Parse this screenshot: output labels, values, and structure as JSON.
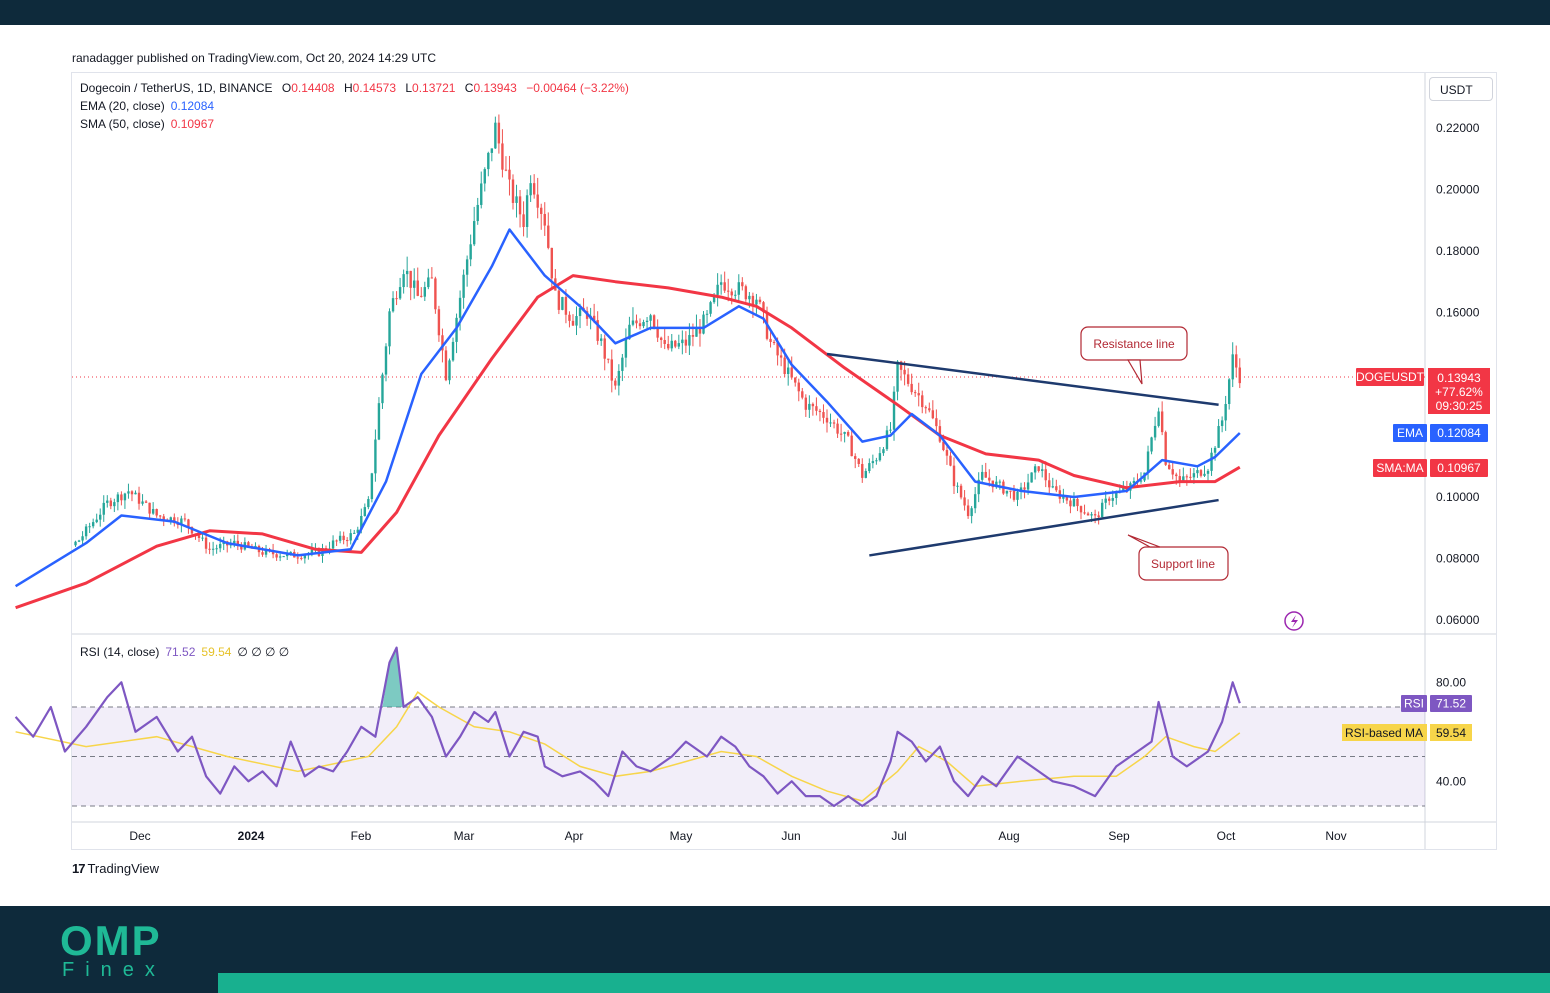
{
  "header": {
    "published": "ranadagger published on TradingView.com, Oct 20, 2024 14:29 UTC"
  },
  "legend": {
    "symbol": "Dogecoin / TetherUS, 1D, BINANCE",
    "o_key": "O",
    "o_val": "0.14408",
    "h_key": "H",
    "h_val": "0.14573",
    "l_key": "L",
    "l_val": "0.13721",
    "c_key": "C",
    "c_val": "0.13943",
    "change": "−0.00464 (−3.22%)",
    "ema_label": "EMA (20, close)",
    "ema_val": "0.12084",
    "sma_label": "SMA (50, close)",
    "sma_val": "0.10967",
    "rsi_label": "RSI (14, close)",
    "rsi_val": "71.52",
    "rsi_ma_val": "59.54",
    "rsi_extra": "∅ ∅ ∅ ∅"
  },
  "currency": "USDT",
  "badges": {
    "symbol": "DOGEUSDT",
    "price": "0.13943",
    "pct": "+77.62%",
    "countdown": "09:30:25",
    "ema_tag": "EMA",
    "ema_val": "0.12084",
    "sma_tag": "SMA:MA",
    "sma_val": "0.10967",
    "rsi_tag": "RSI",
    "rsi_val": "71.52",
    "rsima_tag": "RSI-based MA",
    "rsima_val": "59.54"
  },
  "annotations": {
    "resistance": "Resistance line",
    "support": "Support line"
  },
  "branding": {
    "tv": "TradingView",
    "logo_big": "OMP",
    "logo_small": "Finex"
  },
  "colors": {
    "up": "#26a69a",
    "down": "#ef5350",
    "ema": "#2962ff",
    "sma": "#f23645",
    "rsi": "#7e57c2",
    "rsi_ma": "#f7d54a",
    "trendline": "#1e3a6e",
    "accent": "#18b08f",
    "dark": "#0e2a3b"
  },
  "chart_data": [
    {
      "type": "candlestick",
      "title": "Dogecoin / TetherUS, 1D, BINANCE",
      "y_ticks": [
        "0.22000",
        "0.20000",
        "0.18000",
        "0.16000",
        "0.10000",
        "0.08000",
        "0.06000"
      ],
      "x_ticks": [
        "Dec",
        "2024",
        "Feb",
        "Mar",
        "Apr",
        "May",
        "Jun",
        "Jul",
        "Aug",
        "Sep",
        "Oct",
        "Nov"
      ],
      "ylim": [
        0.06,
        0.225
      ],
      "x_range_days": [
        0,
        336
      ],
      "tick_days": [
        22,
        53,
        84,
        113,
        144,
        174,
        205,
        235,
        266,
        297,
        327,
        358
      ],
      "price_path": [
        [
          0,
          0.072
        ],
        [
          10,
          0.078
        ],
        [
          18,
          0.086
        ],
        [
          26,
          0.098
        ],
        [
          32,
          0.102
        ],
        [
          40,
          0.094
        ],
        [
          48,
          0.092
        ],
        [
          55,
          0.083
        ],
        [
          62,
          0.085
        ],
        [
          70,
          0.082
        ],
        [
          78,
          0.081
        ],
        [
          86,
          0.082
        ],
        [
          90,
          0.085
        ],
        [
          96,
          0.088
        ],
        [
          100,
          0.098
        ],
        [
          103,
          0.13
        ],
        [
          106,
          0.16
        ],
        [
          110,
          0.175
        ],
        [
          114,
          0.165
        ],
        [
          118,
          0.17
        ],
        [
          122,
          0.14
        ],
        [
          126,
          0.165
        ],
        [
          130,
          0.19
        ],
        [
          134,
          0.21
        ],
        [
          136,
          0.22
        ],
        [
          140,
          0.2
        ],
        [
          144,
          0.19
        ],
        [
          146,
          0.205
        ],
        [
          150,
          0.19
        ],
        [
          153,
          0.165
        ],
        [
          158,
          0.158
        ],
        [
          162,
          0.16
        ],
        [
          166,
          0.15
        ],
        [
          170,
          0.135
        ],
        [
          174,
          0.155
        ],
        [
          180,
          0.16
        ],
        [
          184,
          0.148
        ],
        [
          190,
          0.15
        ],
        [
          196,
          0.158
        ],
        [
          200,
          0.17
        ],
        [
          204,
          0.168
        ],
        [
          210,
          0.165
        ],
        [
          214,
          0.15
        ],
        [
          220,
          0.138
        ],
        [
          224,
          0.13
        ],
        [
          230,
          0.126
        ],
        [
          236,
          0.118
        ],
        [
          240,
          0.107
        ],
        [
          244,
          0.113
        ],
        [
          248,
          0.122
        ],
        [
          250,
          0.142
        ],
        [
          254,
          0.136
        ],
        [
          258,
          0.13
        ],
        [
          262,
          0.12
        ],
        [
          266,
          0.105
        ],
        [
          270,
          0.095
        ],
        [
          274,
          0.107
        ],
        [
          278,
          0.104
        ],
        [
          284,
          0.1
        ],
        [
          290,
          0.11
        ],
        [
          294,
          0.102
        ],
        [
          300,
          0.098
        ],
        [
          306,
          0.093
        ],
        [
          310,
          0.1
        ],
        [
          316,
          0.103
        ],
        [
          320,
          0.108
        ],
        [
          324,
          0.13
        ],
        [
          326,
          0.112
        ],
        [
          330,
          0.105
        ],
        [
          334,
          0.107
        ],
        [
          338,
          0.11
        ],
        [
          342,
          0.125
        ],
        [
          345,
          0.145
        ],
        [
          347,
          0.1394
        ]
      ],
      "ema20_path": [
        [
          0,
          0.071
        ],
        [
          20,
          0.085
        ],
        [
          30,
          0.094
        ],
        [
          45,
          0.092
        ],
        [
          60,
          0.085
        ],
        [
          80,
          0.081
        ],
        [
          95,
          0.083
        ],
        [
          105,
          0.105
        ],
        [
          115,
          0.14
        ],
        [
          125,
          0.155
        ],
        [
          135,
          0.175
        ],
        [
          140,
          0.187
        ],
        [
          150,
          0.172
        ],
        [
          160,
          0.162
        ],
        [
          170,
          0.15
        ],
        [
          180,
          0.155
        ],
        [
          195,
          0.155
        ],
        [
          205,
          0.162
        ],
        [
          212,
          0.158
        ],
        [
          220,
          0.143
        ],
        [
          230,
          0.131
        ],
        [
          240,
          0.118
        ],
        [
          248,
          0.12
        ],
        [
          254,
          0.127
        ],
        [
          262,
          0.12
        ],
        [
          272,
          0.105
        ],
        [
          285,
          0.102
        ],
        [
          300,
          0.1
        ],
        [
          315,
          0.102
        ],
        [
          325,
          0.112
        ],
        [
          335,
          0.11
        ],
        [
          340,
          0.113
        ],
        [
          347,
          0.1208
        ]
      ],
      "sma50_path": [
        [
          0,
          0.064
        ],
        [
          20,
          0.072
        ],
        [
          40,
          0.084
        ],
        [
          55,
          0.089
        ],
        [
          70,
          0.088
        ],
        [
          85,
          0.083
        ],
        [
          98,
          0.082
        ],
        [
          108,
          0.095
        ],
        [
          120,
          0.12
        ],
        [
          135,
          0.145
        ],
        [
          148,
          0.165
        ],
        [
          158,
          0.172
        ],
        [
          170,
          0.17
        ],
        [
          185,
          0.168
        ],
        [
          200,
          0.165
        ],
        [
          210,
          0.162
        ],
        [
          220,
          0.155
        ],
        [
          235,
          0.142
        ],
        [
          250,
          0.13
        ],
        [
          262,
          0.12
        ],
        [
          275,
          0.114
        ],
        [
          290,
          0.112
        ],
        [
          300,
          0.107
        ],
        [
          315,
          0.103
        ],
        [
          330,
          0.105
        ],
        [
          340,
          0.105
        ],
        [
          347,
          0.1097
        ]
      ],
      "resistance_line": [
        [
          230,
          0.1465
        ],
        [
          341,
          0.13
        ]
      ],
      "support_line": [
        [
          242,
          0.081
        ],
        [
          341,
          0.099
        ]
      ]
    },
    {
      "type": "line",
      "title": "RSI (14, close)",
      "y_ticks": [
        "80.00",
        "40.00"
      ],
      "ylim": [
        25,
        95
      ],
      "bands": [
        70,
        50,
        30
      ],
      "rsi_path": [
        [
          0,
          66
        ],
        [
          5,
          58
        ],
        [
          10,
          70
        ],
        [
          14,
          52
        ],
        [
          20,
          62
        ],
        [
          26,
          74
        ],
        [
          30,
          80
        ],
        [
          34,
          60
        ],
        [
          40,
          66
        ],
        [
          46,
          52
        ],
        [
          50,
          58
        ],
        [
          54,
          42
        ],
        [
          58,
          35
        ],
        [
          62,
          46
        ],
        [
          66,
          40
        ],
        [
          70,
          44
        ],
        [
          74,
          38
        ],
        [
          78,
          56
        ],
        [
          82,
          42
        ],
        [
          86,
          46
        ],
        [
          90,
          44
        ],
        [
          94,
          52
        ],
        [
          98,
          62
        ],
        [
          102,
          58
        ],
        [
          106,
          88
        ],
        [
          108,
          94
        ],
        [
          110,
          70
        ],
        [
          114,
          74
        ],
        [
          118,
          66
        ],
        [
          122,
          50
        ],
        [
          126,
          58
        ],
        [
          130,
          68
        ],
        [
          134,
          64
        ],
        [
          136,
          68
        ],
        [
          140,
          50
        ],
        [
          144,
          60
        ],
        [
          148,
          58
        ],
        [
          150,
          46
        ],
        [
          155,
          42
        ],
        [
          160,
          44
        ],
        [
          164,
          40
        ],
        [
          168,
          34
        ],
        [
          172,
          52
        ],
        [
          176,
          46
        ],
        [
          180,
          44
        ],
        [
          186,
          50
        ],
        [
          190,
          56
        ],
        [
          196,
          50
        ],
        [
          200,
          58
        ],
        [
          204,
          54
        ],
        [
          208,
          46
        ],
        [
          212,
          42
        ],
        [
          216,
          35
        ],
        [
          220,
          40
        ],
        [
          224,
          34
        ],
        [
          228,
          34
        ],
        [
          232,
          30
        ],
        [
          236,
          34
        ],
        [
          240,
          30
        ],
        [
          244,
          34
        ],
        [
          248,
          48
        ],
        [
          250,
          60
        ],
        [
          254,
          56
        ],
        [
          258,
          48
        ],
        [
          262,
          54
        ],
        [
          266,
          40
        ],
        [
          270,
          34
        ],
        [
          274,
          42
        ],
        [
          278,
          38
        ],
        [
          284,
          50
        ],
        [
          290,
          44
        ],
        [
          294,
          40
        ],
        [
          300,
          38
        ],
        [
          306,
          34
        ],
        [
          312,
          46
        ],
        [
          318,
          52
        ],
        [
          322,
          56
        ],
        [
          324,
          72
        ],
        [
          328,
          50
        ],
        [
          332,
          46
        ],
        [
          338,
          52
        ],
        [
          342,
          64
        ],
        [
          345,
          80
        ],
        [
          347,
          71.52
        ]
      ],
      "rsi_ma_path": [
        [
          0,
          60
        ],
        [
          20,
          54
        ],
        [
          40,
          58
        ],
        [
          60,
          50
        ],
        [
          80,
          44
        ],
        [
          100,
          50
        ],
        [
          108,
          62
        ],
        [
          114,
          76
        ],
        [
          120,
          70
        ],
        [
          130,
          62
        ],
        [
          140,
          60
        ],
        [
          150,
          55
        ],
        [
          160,
          46
        ],
        [
          170,
          42
        ],
        [
          180,
          44
        ],
        [
          190,
          48
        ],
        [
          200,
          52
        ],
        [
          210,
          50
        ],
        [
          220,
          42
        ],
        [
          230,
          36
        ],
        [
          240,
          32
        ],
        [
          250,
          44
        ],
        [
          256,
          54
        ],
        [
          264,
          48
        ],
        [
          272,
          38
        ],
        [
          285,
          40
        ],
        [
          300,
          42
        ],
        [
          312,
          42
        ],
        [
          320,
          50
        ],
        [
          326,
          58
        ],
        [
          334,
          54
        ],
        [
          340,
          52
        ],
        [
          347,
          59.54
        ]
      ]
    }
  ]
}
